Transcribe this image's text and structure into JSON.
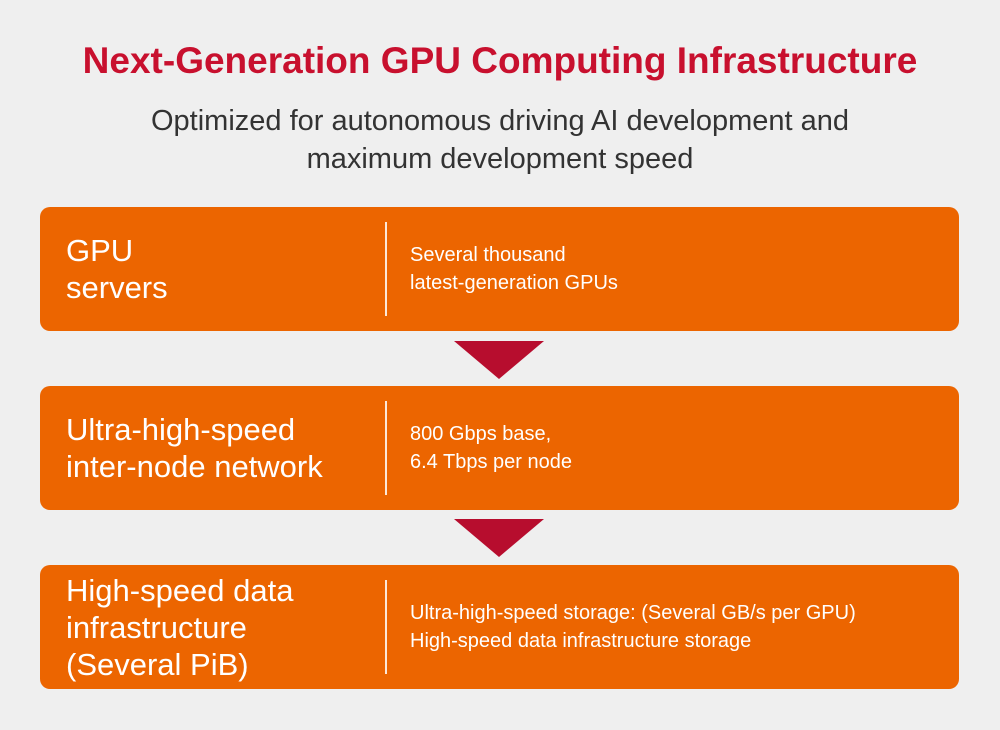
{
  "header": {
    "title": "Next-Generation GPU Computing Infrastructure",
    "subtitle": "Optimized for autonomous driving AI development and maximum development speed"
  },
  "stages": [
    {
      "label": "GPU\nservers",
      "description": "Several thousand\nlatest-generation GPUs"
    },
    {
      "label": "Ultra-high-speed\ninter-node network",
      "description": "800 Gbps base,\n6.4 Tbps per node"
    },
    {
      "label": "High-speed data\ninfrastructure\n(Several PiB)",
      "description": "Ultra-high-speed storage: (Several GB/s per GPU)\nHigh-speed data infrastructure storage"
    }
  ],
  "colors": {
    "title": "#c8102e",
    "stage_background": "#ec6500",
    "arrow": "#b70d2e",
    "page_background": "#efefef"
  }
}
